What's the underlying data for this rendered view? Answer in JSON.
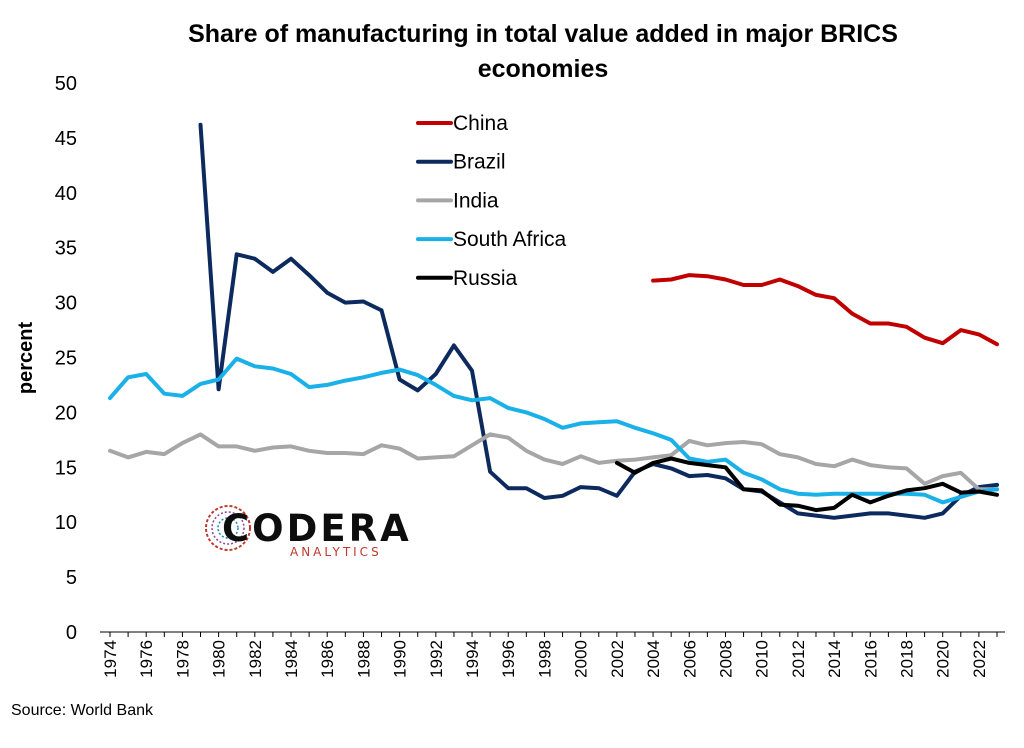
{
  "chart_data": {
    "type": "line",
    "title_lines": [
      "Share of manufacturing in total value added in major BRICS",
      "economies"
    ],
    "xlabel": "",
    "ylabel": "percent",
    "ylim": [
      0,
      50
    ],
    "yticks": [
      0,
      5,
      10,
      15,
      20,
      25,
      30,
      35,
      40,
      45,
      50
    ],
    "xlim": [
      1974,
      2023
    ],
    "xticks": [
      1974,
      1976,
      1978,
      1980,
      1982,
      1984,
      1986,
      1988,
      1990,
      1992,
      1994,
      1996,
      1998,
      2000,
      2002,
      2004,
      2006,
      2008,
      2010,
      2012,
      2014,
      2016,
      2018,
      2020,
      2022
    ],
    "grid": false,
    "legend_position": "top-center",
    "series": [
      {
        "name": "China",
        "color": "#c00000",
        "x": [
          2004,
          2005,
          2006,
          2007,
          2008,
          2009,
          2010,
          2011,
          2012,
          2013,
          2014,
          2015,
          2016,
          2017,
          2018,
          2019,
          2020,
          2021,
          2022,
          2023
        ],
        "values": [
          32.0,
          32.1,
          32.5,
          32.4,
          32.1,
          31.6,
          31.6,
          32.1,
          31.5,
          30.7,
          30.4,
          29.0,
          28.1,
          28.1,
          27.8,
          26.8,
          26.3,
          27.5,
          27.1,
          26.2
        ]
      },
      {
        "name": "Brazil",
        "color": "#0d2a5e",
        "x": [
          1979,
          1980,
          1981,
          1982,
          1983,
          1984,
          1985,
          1986,
          1987,
          1988,
          1989,
          1990,
          1991,
          1992,
          1993,
          1994,
          1995,
          1996,
          1997,
          1998,
          1999,
          2000,
          2001,
          2002,
          2003,
          2004,
          2005,
          2006,
          2007,
          2008,
          2009,
          2010,
          2011,
          2012,
          2013,
          2014,
          2015,
          2016,
          2017,
          2018,
          2019,
          2020,
          2021,
          2022,
          2023
        ],
        "values": [
          46.2,
          22.1,
          34.4,
          34.0,
          32.8,
          34.0,
          32.5,
          30.9,
          30.0,
          30.1,
          29.3,
          23.0,
          22.0,
          23.5,
          26.1,
          23.8,
          14.6,
          13.1,
          13.1,
          12.2,
          12.4,
          13.2,
          13.1,
          12.4,
          14.6,
          15.3,
          14.9,
          14.2,
          14.3,
          14.0,
          13.0,
          12.8,
          11.8,
          10.8,
          10.6,
          10.4,
          10.6,
          10.8,
          10.8,
          10.6,
          10.4,
          10.8,
          12.4,
          13.2,
          13.4
        ]
      },
      {
        "name": "India",
        "color": "#a6a6a6",
        "x": [
          1974,
          1975,
          1976,
          1977,
          1978,
          1979,
          1980,
          1981,
          1982,
          1983,
          1984,
          1985,
          1986,
          1987,
          1988,
          1989,
          1990,
          1991,
          1992,
          1993,
          1994,
          1995,
          1996,
          1997,
          1998,
          1999,
          2000,
          2001,
          2002,
          2003,
          2004,
          2005,
          2006,
          2007,
          2008,
          2009,
          2010,
          2011,
          2012,
          2013,
          2014,
          2015,
          2016,
          2017,
          2018,
          2019,
          2020,
          2021,
          2022,
          2023
        ],
        "values": [
          16.5,
          15.9,
          16.4,
          16.2,
          17.2,
          18.0,
          16.9,
          16.9,
          16.5,
          16.8,
          16.9,
          16.5,
          16.3,
          16.3,
          16.2,
          17.0,
          16.7,
          15.8,
          15.9,
          16.0,
          17.0,
          18.0,
          17.7,
          16.5,
          15.7,
          15.3,
          16.0,
          15.4,
          15.6,
          15.7,
          15.9,
          16.1,
          17.4,
          17.0,
          17.2,
          17.3,
          17.1,
          16.2,
          15.9,
          15.3,
          15.1,
          15.7,
          15.2,
          15.0,
          14.9,
          13.5,
          14.2,
          14.5,
          13.0,
          13.0
        ]
      },
      {
        "name": "South Africa",
        "color": "#1ab0e8",
        "x": [
          1974,
          1975,
          1976,
          1977,
          1978,
          1979,
          1980,
          1981,
          1982,
          1983,
          1984,
          1985,
          1986,
          1987,
          1988,
          1989,
          1990,
          1991,
          1992,
          1993,
          1994,
          1995,
          1996,
          1997,
          1998,
          1999,
          2000,
          2001,
          2002,
          2003,
          2004,
          2005,
          2006,
          2007,
          2008,
          2009,
          2010,
          2011,
          2012,
          2013,
          2014,
          2015,
          2016,
          2017,
          2018,
          2019,
          2020,
          2021,
          2022,
          2023
        ],
        "values": [
          21.3,
          23.2,
          23.5,
          21.7,
          21.5,
          22.6,
          23.0,
          24.9,
          24.2,
          24.0,
          23.5,
          22.3,
          22.5,
          22.9,
          23.2,
          23.6,
          23.9,
          23.4,
          22.5,
          21.5,
          21.1,
          21.3,
          20.4,
          20.0,
          19.4,
          18.6,
          19.0,
          19.1,
          19.2,
          18.6,
          18.1,
          17.5,
          15.8,
          15.5,
          15.7,
          14.5,
          13.9,
          13.0,
          12.6,
          12.5,
          12.6,
          12.6,
          12.6,
          12.6,
          12.6,
          12.5,
          11.8,
          12.3,
          12.8,
          13.0
        ]
      },
      {
        "name": "Russia",
        "color": "#000000",
        "x": [
          2002,
          2003,
          2004,
          2005,
          2006,
          2007,
          2008,
          2009,
          2010,
          2011,
          2012,
          2013,
          2014,
          2015,
          2016,
          2017,
          2018,
          2019,
          2020,
          2021,
          2022,
          2023
        ],
        "values": [
          15.4,
          14.5,
          15.4,
          15.8,
          15.4,
          15.2,
          15.0,
          13.0,
          12.9,
          11.6,
          11.5,
          11.1,
          11.3,
          12.5,
          11.8,
          12.4,
          12.9,
          13.1,
          13.5,
          12.7,
          12.8,
          12.5
        ]
      }
    ]
  },
  "source": "Source: World Bank",
  "logo": {
    "name": "CODERA",
    "subtitle": "ANALYTICS"
  }
}
